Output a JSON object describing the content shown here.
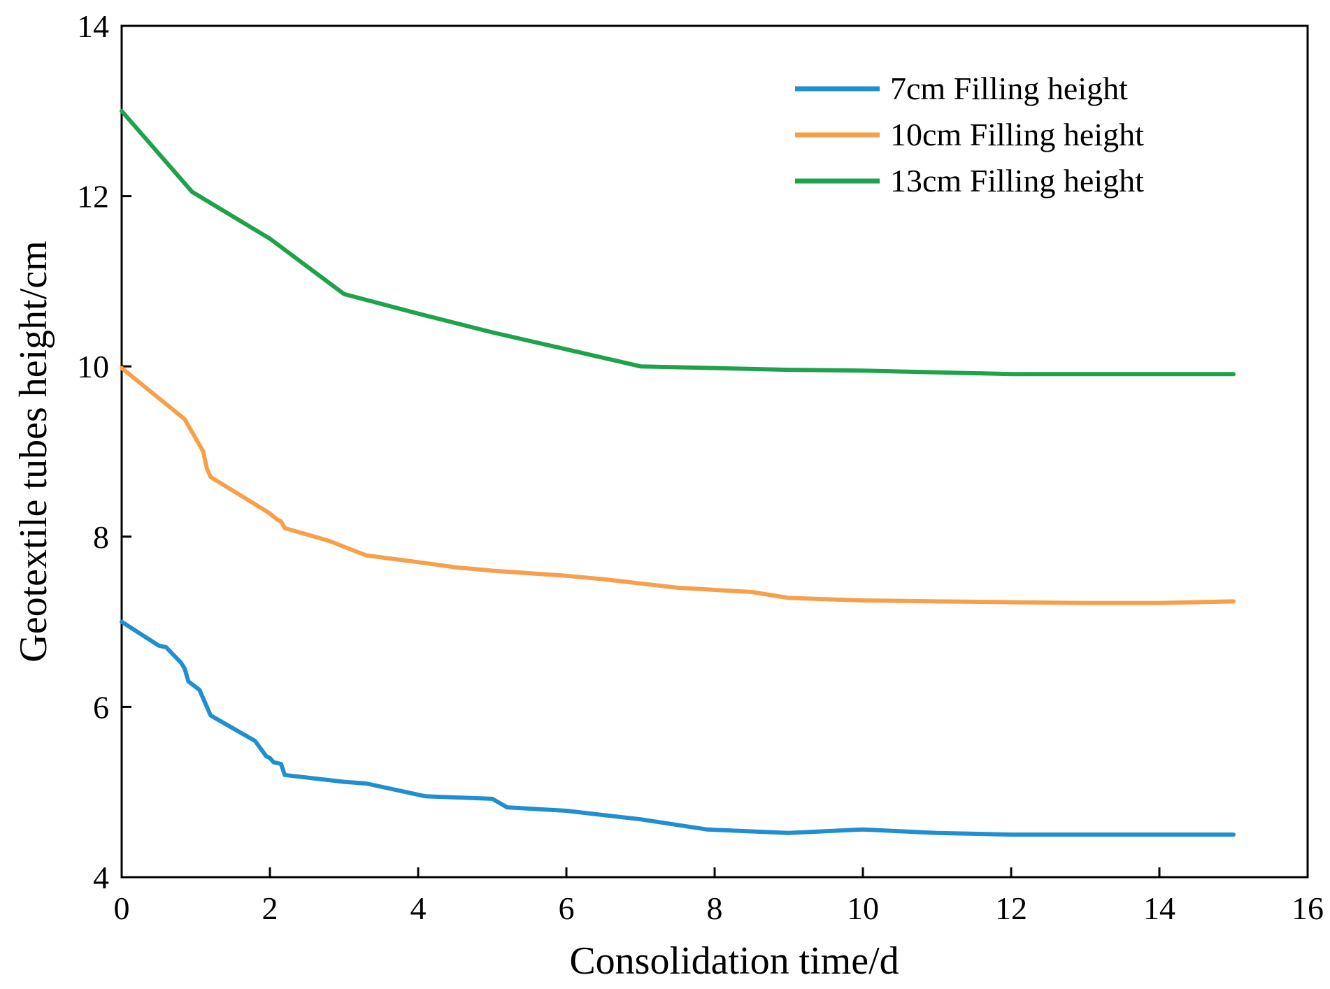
{
  "chart_data": {
    "type": "line",
    "title": "",
    "xlabel": "Consolidation time/d",
    "ylabel": "Geotextile tubes height/cm",
    "xlim": [
      0,
      16
    ],
    "ylim": [
      4,
      14
    ],
    "xticks": [
      0,
      2,
      4,
      6,
      8,
      10,
      12,
      14,
      16
    ],
    "yticks": [
      4,
      6,
      8,
      10,
      12,
      14
    ],
    "xtick_labels": [
      "0",
      "2",
      "4",
      "6",
      "8",
      "10",
      "12",
      "14",
      "16"
    ],
    "ytick_labels": [
      "4",
      "6",
      "8",
      "10",
      "12",
      "14"
    ],
    "grid": false,
    "legend_position": "top-right",
    "series": [
      {
        "name": "7cm Filling height",
        "color": "#1f8fd0",
        "x": [
          0,
          0.5,
          0.6,
          0.8,
          0.85,
          0.9,
          1.05,
          1.2,
          1.8,
          1.95,
          2.0,
          2.05,
          2.15,
          2.2,
          3.0,
          3.3,
          4.1,
          5.0,
          5.2,
          6.0,
          7.0,
          7.9,
          9.0,
          10.0,
          11.0,
          12.0,
          13.0,
          14.0,
          15.0
        ],
        "values": [
          7.0,
          6.72,
          6.7,
          6.52,
          6.45,
          6.3,
          6.2,
          5.9,
          5.6,
          5.42,
          5.4,
          5.35,
          5.33,
          5.2,
          5.12,
          5.1,
          4.95,
          4.92,
          4.82,
          4.78,
          4.68,
          4.56,
          4.52,
          4.56,
          4.52,
          4.5,
          4.5,
          4.5,
          4.5
        ]
      },
      {
        "name": "10cm Filling height",
        "color": "#f7a04b",
        "x": [
          0,
          0.85,
          1.1,
          1.15,
          1.2,
          1.8,
          1.95,
          2.0,
          2.1,
          2.15,
          2.2,
          2.8,
          3.0,
          3.3,
          4.0,
          4.5,
          5.0,
          6.0,
          6.5,
          7.0,
          7.5,
          8.5,
          9.0,
          10.0,
          11.0,
          12.0,
          13.0,
          14.0,
          15.0
        ],
        "values": [
          9.98,
          9.38,
          9.0,
          8.8,
          8.7,
          8.38,
          8.3,
          8.27,
          8.2,
          8.18,
          8.1,
          7.95,
          7.88,
          7.78,
          7.7,
          7.64,
          7.6,
          7.54,
          7.5,
          7.45,
          7.4,
          7.35,
          7.28,
          7.25,
          7.24,
          7.23,
          7.22,
          7.22,
          7.24
        ]
      },
      {
        "name": "13cm Filling height",
        "color": "#1ea24b",
        "x": [
          0,
          0.95,
          2.0,
          3.0,
          4.0,
          5.0,
          6.0,
          7.0,
          8.0,
          9.0,
          10.0,
          11.0,
          12.0,
          13.0,
          14.0,
          15.0
        ],
        "values": [
          13.0,
          12.05,
          11.5,
          10.85,
          10.62,
          10.4,
          10.2,
          10.0,
          9.98,
          9.96,
          9.95,
          9.93,
          9.91,
          9.91,
          9.91,
          9.91
        ]
      }
    ]
  }
}
